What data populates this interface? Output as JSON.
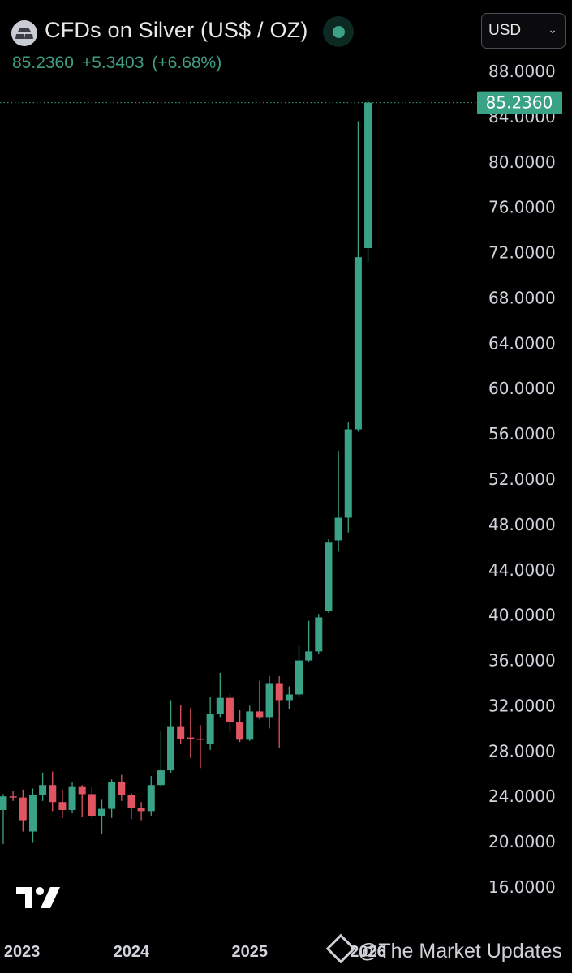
{
  "header": {
    "symbol_title": "CFDs on Silver (US$ / OZ)",
    "last_price": "85.2360",
    "change": "+5.3403",
    "change_pct": "(+6.68%)",
    "currency": "USD",
    "status": "market-open",
    "colors": {
      "up": "#3aa387",
      "down": "#e05561",
      "background": "#000000"
    }
  },
  "icons": {
    "symbol": "silver-bars-icon",
    "status": "status-dot-icon",
    "dropdown": "chevron-down-icon",
    "logo": "tradingview-logo-icon",
    "watermark": "diamond-icon"
  },
  "watermark": {
    "text": "@The Market Updates"
  },
  "chart_data": {
    "type": "candlestick",
    "title": "CFDs on Silver (US$ / OZ)",
    "interval": "monthly",
    "ylim": [
      14,
      90
    ],
    "y_ticks": [
      "88.0000",
      "84.0000",
      "80.0000",
      "76.0000",
      "72.0000",
      "68.0000",
      "64.0000",
      "60.0000",
      "56.0000",
      "52.0000",
      "48.0000",
      "44.0000",
      "40.0000",
      "36.0000",
      "32.0000",
      "28.0000",
      "24.0000",
      "20.0000",
      "16.0000"
    ],
    "x_ticks": [
      "2023",
      "2024",
      "2025",
      "2026"
    ],
    "last_price_label": "85.2360",
    "last_price": 85.236,
    "candles": [
      {
        "t": "2022-12",
        "o": 22.8,
        "h": 24.2,
        "l": 19.8,
        "c": 24.0
      },
      {
        "t": "2023-01",
        "o": 24.0,
        "h": 24.5,
        "l": 23.6,
        "c": 23.9
      },
      {
        "t": "2023-02",
        "o": 23.9,
        "h": 24.6,
        "l": 20.9,
        "c": 21.9
      },
      {
        "t": "2023-03",
        "o": 20.9,
        "h": 24.7,
        "l": 19.9,
        "c": 24.1
      },
      {
        "t": "2023-04",
        "o": 24.1,
        "h": 26.1,
        "l": 23.6,
        "c": 25.0
      },
      {
        "t": "2023-05",
        "o": 25.0,
        "h": 26.2,
        "l": 22.7,
        "c": 23.5
      },
      {
        "t": "2023-06",
        "o": 23.5,
        "h": 24.6,
        "l": 22.1,
        "c": 22.8
      },
      {
        "t": "2023-07",
        "o": 22.8,
        "h": 25.3,
        "l": 22.5,
        "c": 24.9
      },
      {
        "t": "2023-08",
        "o": 24.9,
        "h": 25.0,
        "l": 22.2,
        "c": 24.2
      },
      {
        "t": "2023-09",
        "o": 24.2,
        "h": 24.8,
        "l": 22.1,
        "c": 22.3
      },
      {
        "t": "2023-10",
        "o": 22.3,
        "h": 23.7,
        "l": 20.7,
        "c": 22.9
      },
      {
        "t": "2023-11",
        "o": 22.9,
        "h": 25.5,
        "l": 22.1,
        "c": 25.3
      },
      {
        "t": "2023-12",
        "o": 25.3,
        "h": 25.9,
        "l": 23.6,
        "c": 24.1
      },
      {
        "t": "2024-01",
        "o": 24.1,
        "h": 24.3,
        "l": 22.0,
        "c": 23.0
      },
      {
        "t": "2024-02",
        "o": 23.0,
        "h": 23.5,
        "l": 21.9,
        "c": 22.7
      },
      {
        "t": "2024-03",
        "o": 22.7,
        "h": 25.8,
        "l": 22.3,
        "c": 25.0
      },
      {
        "t": "2024-04",
        "o": 25.0,
        "h": 29.8,
        "l": 24.9,
        "c": 26.3
      },
      {
        "t": "2024-05",
        "o": 26.3,
        "h": 32.5,
        "l": 26.1,
        "c": 30.2
      },
      {
        "t": "2024-06",
        "o": 30.2,
        "h": 32.1,
        "l": 28.6,
        "c": 29.1
      },
      {
        "t": "2024-07",
        "o": 29.2,
        "h": 31.8,
        "l": 27.4,
        "c": 29.1
      },
      {
        "t": "2024-08",
        "o": 29.1,
        "h": 30.3,
        "l": 26.5,
        "c": 29.0
      },
      {
        "t": "2024-09",
        "o": 28.6,
        "h": 32.8,
        "l": 28.1,
        "c": 31.3
      },
      {
        "t": "2024-10",
        "o": 31.3,
        "h": 34.9,
        "l": 31.0,
        "c": 32.7
      },
      {
        "t": "2024-11",
        "o": 32.7,
        "h": 33.0,
        "l": 29.7,
        "c": 30.6
      },
      {
        "t": "2024-12",
        "o": 30.6,
        "h": 31.6,
        "l": 28.8,
        "c": 29.0
      },
      {
        "t": "2025-01",
        "o": 29.0,
        "h": 32.0,
        "l": 28.9,
        "c": 31.5
      },
      {
        "t": "2025-02",
        "o": 31.5,
        "h": 34.2,
        "l": 30.8,
        "c": 31.0
      },
      {
        "t": "2025-03",
        "o": 31.0,
        "h": 34.6,
        "l": 30.0,
        "c": 34.0
      },
      {
        "t": "2025-04",
        "o": 34.0,
        "h": 34.6,
        "l": 28.3,
        "c": 32.5
      },
      {
        "t": "2025-05",
        "o": 32.5,
        "h": 33.7,
        "l": 31.7,
        "c": 33.0
      },
      {
        "t": "2025-06",
        "o": 33.0,
        "h": 37.3,
        "l": 32.8,
        "c": 36.0
      },
      {
        "t": "2025-07",
        "o": 36.0,
        "h": 39.5,
        "l": 35.9,
        "c": 36.8
      },
      {
        "t": "2025-08",
        "o": 36.8,
        "h": 40.1,
        "l": 36.6,
        "c": 39.8
      },
      {
        "t": "2025-09",
        "o": 40.4,
        "h": 46.7,
        "l": 40.2,
        "c": 46.4
      },
      {
        "t": "2025-10",
        "o": 46.6,
        "h": 54.5,
        "l": 45.6,
        "c": 48.6
      },
      {
        "t": "2025-11",
        "o": 48.6,
        "h": 57.0,
        "l": 47.3,
        "c": 56.4
      },
      {
        "t": "2025-12",
        "o": 56.4,
        "h": 83.6,
        "l": 56.2,
        "c": 71.6
      },
      {
        "t": "2026-01",
        "o": 72.4,
        "h": 85.5,
        "l": 71.2,
        "c": 85.236
      }
    ]
  }
}
